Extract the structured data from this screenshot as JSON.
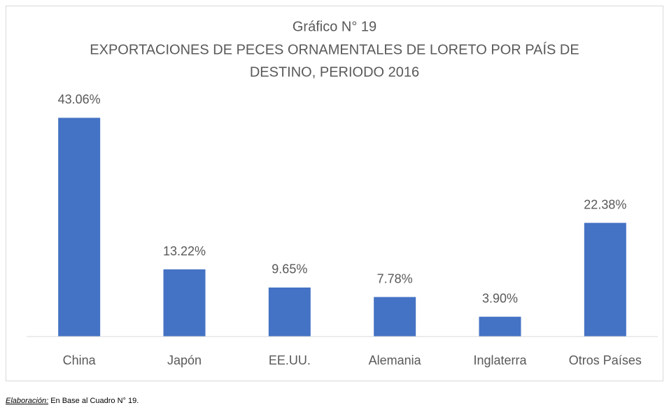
{
  "chart_data": {
    "type": "bar",
    "title": [
      "Gráfico N° 19",
      "EXPORTACIONES DE PECES ORNAMENTALES DE LORETO POR PAÍS DE",
      "DESTINO, PERIODO 2016"
    ],
    "categories": [
      "China",
      "Japón",
      "EE.UU.",
      "Alemania",
      "Inglaterra",
      "Otros Países"
    ],
    "values": [
      43.06,
      13.22,
      9.65,
      7.78,
      3.9,
      22.38
    ],
    "value_labels": [
      "43.06%",
      "13.22%",
      "9.65%",
      "7.78%",
      "3.90%",
      "22.38%"
    ],
    "color": "#4472c4",
    "ylim": [
      0,
      50
    ]
  },
  "footer": {
    "label": "Elaboración:",
    "text": " En Base al Cuadro N° 19."
  }
}
